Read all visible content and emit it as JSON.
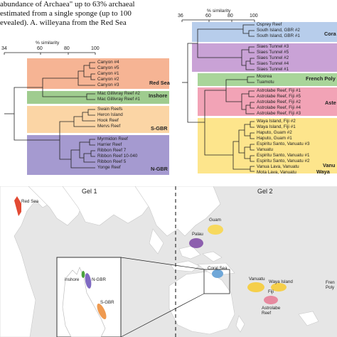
{
  "body_text": [
    "abundance of Archaea\" up to 63% archaeal",
    "estimated from a single sponge (up to 100",
    "evealed). A. willeyana from the Red Sea"
  ],
  "left_dendrogram": {
    "axis_title": "% similarity",
    "ticks": [
      "34",
      "60",
      "80",
      "100"
    ],
    "groups": [
      {
        "name": "Red Sea",
        "color": "#f6b494",
        "leaves": [
          "Canyon #4",
          "Canyon #5",
          "Canyon #1",
          "Canyon #2",
          "Canyon #3"
        ]
      },
      {
        "name": "Inshore",
        "color": "#9fcc8f",
        "leaves": [
          "Mac Gillivray Reef #2",
          "Mac Gillivray Reef #1"
        ]
      },
      {
        "name": "S-GBR",
        "color": "#fbd5a5",
        "leaves": [
          "Swain Reefs",
          "Heron Island",
          "Hook Reef",
          "Mervs Reef"
        ]
      },
      {
        "name": "N-GBR",
        "color": "#a59ad0",
        "leaves": [
          "Myrmidon Reef",
          "Harrier Reef",
          "Ribbon Reef 7",
          "Ribbon Reef 10-040",
          "Ribbon Reef 5",
          "Yonge Reef"
        ]
      }
    ]
  },
  "right_dendrogram": {
    "axis_title": "% similarity",
    "ticks": [
      "36",
      "60",
      "80",
      "100"
    ],
    "groups": [
      {
        "name": "Cora",
        "color": "#b7cdeb",
        "leaves": [
          "Osprey Reef",
          "South Island, GBR #2",
          "South Island, GBR #1"
        ]
      },
      {
        "name": "",
        "color": "#c9a2d6",
        "leaves": [
          "Siaes Tunnel #3",
          "Siaes Tunnel #5",
          "Siaes Tunnel #2",
          "Siaes Tunnel #4",
          "Siaes Tunnel #1"
        ]
      },
      {
        "name": "French Poly",
        "color": "#a9d59a",
        "leaves": [
          "Moorea",
          "Tuamotu"
        ]
      },
      {
        "name": "Aste",
        "color": "#f2a3b6",
        "leaves": [
          "Astrolabe Reef, Fiji #1",
          "Astrolabe Reef, Fiji #5",
          "Astrolabe Reef, Fiji #2",
          "Astrolabe Reef, Fiji #4",
          "Astrolabe Reef, Fiji #3"
        ]
      },
      {
        "name": "Vanu",
        "color": "#fde58c",
        "leaves": [
          "Waya Island, Fiji #2",
          "Waya Island, Fiji #1",
          "Haputo, Guam #2",
          "Haputo, Guam #1",
          "Espiritu Santo, Vanuatu #3",
          "Vanuatu",
          "Espiritu Santo, Vanuatu #1",
          "Espiritu Santo, Vanuatu #2",
          "Vanua Lava, Vanuatu",
          "Mota Lava, Vanuatu"
        ]
      }
    ],
    "extra_group_label": "Waya"
  },
  "map": {
    "gel1": "Gel 1",
    "gel2": "Gel 2",
    "labels": {
      "red_sea": "Red Sea",
      "inshore": "inshore",
      "ngbr": "N-GBR",
      "sgbr": "S-GBR",
      "guam": "Guam",
      "palau": "Palau",
      "coral_sea": "Coral Sea",
      "vanuatu": "Vanuatu",
      "waya": "Waya Island",
      "fiji": "Fiji",
      "astrolabe": "Astrolabe\nReef",
      "french_poly": "Fren\nPoly"
    },
    "colors": {
      "red_sea": "#e24a33",
      "guam": "#f7d95e",
      "palau": "#8d5fae",
      "coral_sea": "#6fa7d8",
      "vanuatu": "#f5cf4a",
      "waya": "#f5cf4a",
      "astrolabe": "#e78aa0",
      "inshore": "#4aa33c",
      "ngbr": "#7f6ac2",
      "sgbr": "#ef9a50"
    }
  }
}
